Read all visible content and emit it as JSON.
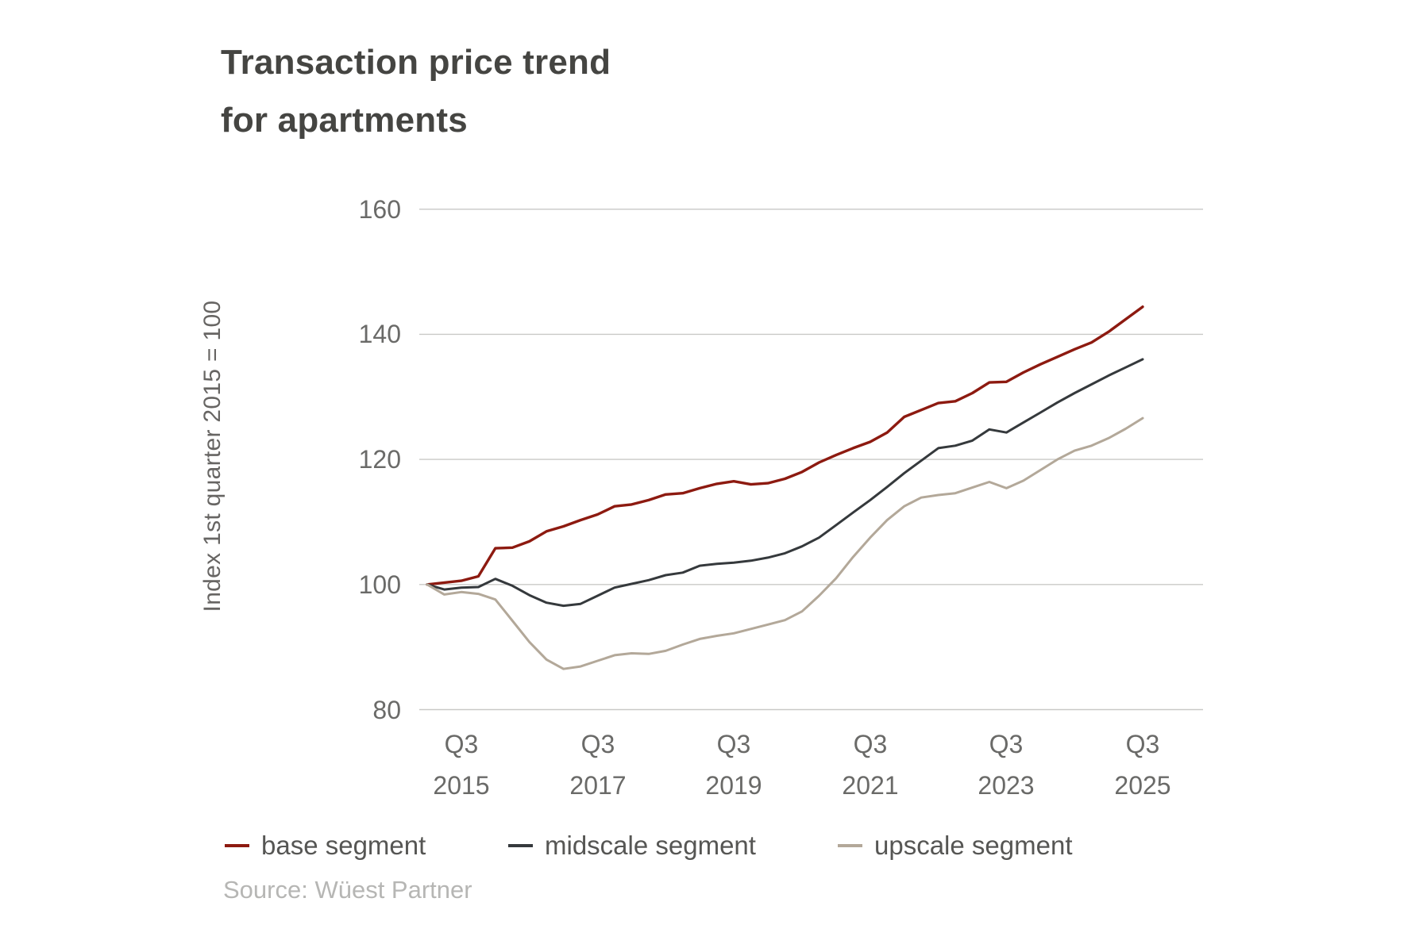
{
  "title": {
    "line1": "Transaction price trend",
    "line2": "for apartments"
  },
  "y_axis_title": "Index 1st quarter 2015 = 100",
  "source": "Source: Wüest Partner",
  "colors": {
    "base_segment": "#8d1a10",
    "midscale_segment": "#35393c",
    "upscale_segment": "#b3a899",
    "gridline": "#c9c9c7",
    "tick_text": "#6a6a68"
  },
  "legend": {
    "items": [
      {
        "label": "base segment",
        "color": "#8d1a10"
      },
      {
        "label": "midscale segment",
        "color": "#35393c"
      },
      {
        "label": "upscale segment",
        "color": "#b3a899"
      }
    ]
  },
  "chart_data": {
    "type": "line",
    "title": "Transaction price trend for apartments",
    "ylabel": "Index 1st quarter 2015 = 100",
    "ylim": [
      80,
      160
    ],
    "yticks": [
      160,
      140,
      120,
      100,
      80
    ],
    "grid": "horizontal",
    "legend_position": "bottom",
    "x_unit": "quarter",
    "quarters": [
      "Q1 2015",
      "Q2 2015",
      "Q3 2015",
      "Q4 2015",
      "Q1 2016",
      "Q2 2016",
      "Q3 2016",
      "Q4 2016",
      "Q1 2017",
      "Q2 2017",
      "Q3 2017",
      "Q4 2017",
      "Q1 2018",
      "Q2 2018",
      "Q3 2018",
      "Q4 2018",
      "Q1 2019",
      "Q2 2019",
      "Q3 2019",
      "Q4 2019",
      "Q1 2020",
      "Q2 2020",
      "Q3 2020",
      "Q4 2020",
      "Q1 2021",
      "Q2 2021",
      "Q3 2021",
      "Q4 2021",
      "Q1 2022",
      "Q2 2022",
      "Q3 2022",
      "Q4 2022",
      "Q1 2023",
      "Q2 2023",
      "Q3 2023",
      "Q4 2023",
      "Q1 2024",
      "Q2 2024",
      "Q3 2024",
      "Q4 2024",
      "Q1 2025",
      "Q2 2025",
      "Q3 2025"
    ],
    "xticks": [
      {
        "q": "Q3",
        "year": "2015",
        "index": 2
      },
      {
        "q": "Q3",
        "year": "2017",
        "index": 10
      },
      {
        "q": "Q3",
        "year": "2019",
        "index": 18
      },
      {
        "q": "Q3",
        "year": "2021",
        "index": 26
      },
      {
        "q": "Q3",
        "year": "2023",
        "index": 34
      },
      {
        "q": "Q3",
        "year": "2025",
        "index": 42
      }
    ],
    "series": [
      {
        "name": "base segment",
        "color": "#8d1a10",
        "values": [
          100,
          100.3,
          100.6,
          101.3,
          105.8,
          105.9,
          106.9,
          108.5,
          109.3,
          110.3,
          111.2,
          112.5,
          112.8,
          113.5,
          114.4,
          114.6,
          115.4,
          116.1,
          116.5,
          116,
          116.2,
          116.9,
          118,
          119.5,
          120.7,
          121.8,
          122.8,
          124.3,
          126.8,
          127.9,
          129,
          129.3,
          130.6,
          132.3,
          132.4,
          133.9,
          135.2,
          136.4,
          137.6,
          138.7,
          140.4,
          142.4,
          144.4
        ]
      },
      {
        "name": "midscale segment",
        "color": "#35393c",
        "values": [
          100,
          99.2,
          99.5,
          99.6,
          100.9,
          99.8,
          98.3,
          97.1,
          96.6,
          96.9,
          98.2,
          99.5,
          100.1,
          100.7,
          101.5,
          101.9,
          103,
          103.3,
          103.5,
          103.8,
          104.3,
          105,
          106.1,
          107.5,
          109.5,
          111.5,
          113.5,
          115.6,
          117.8,
          119.8,
          121.8,
          122.2,
          123,
          124.8,
          124.3,
          125.9,
          127.5,
          129.1,
          130.6,
          132,
          133.4,
          134.7,
          136
        ]
      },
      {
        "name": "upscale segment",
        "color": "#b3a899",
        "values": [
          100,
          98.4,
          98.8,
          98.5,
          97.6,
          94.2,
          90.8,
          88,
          86.5,
          86.9,
          87.8,
          88.7,
          89,
          88.9,
          89.4,
          90.4,
          91.3,
          91.8,
          92.2,
          92.9,
          93.6,
          94.3,
          95.7,
          98.2,
          101,
          104.4,
          107.5,
          110.3,
          112.5,
          113.9,
          114.3,
          114.6,
          115.5,
          116.4,
          115.4,
          116.6,
          118.3,
          120,
          121.4,
          122.2,
          123.4,
          124.9,
          126.6
        ]
      }
    ]
  }
}
